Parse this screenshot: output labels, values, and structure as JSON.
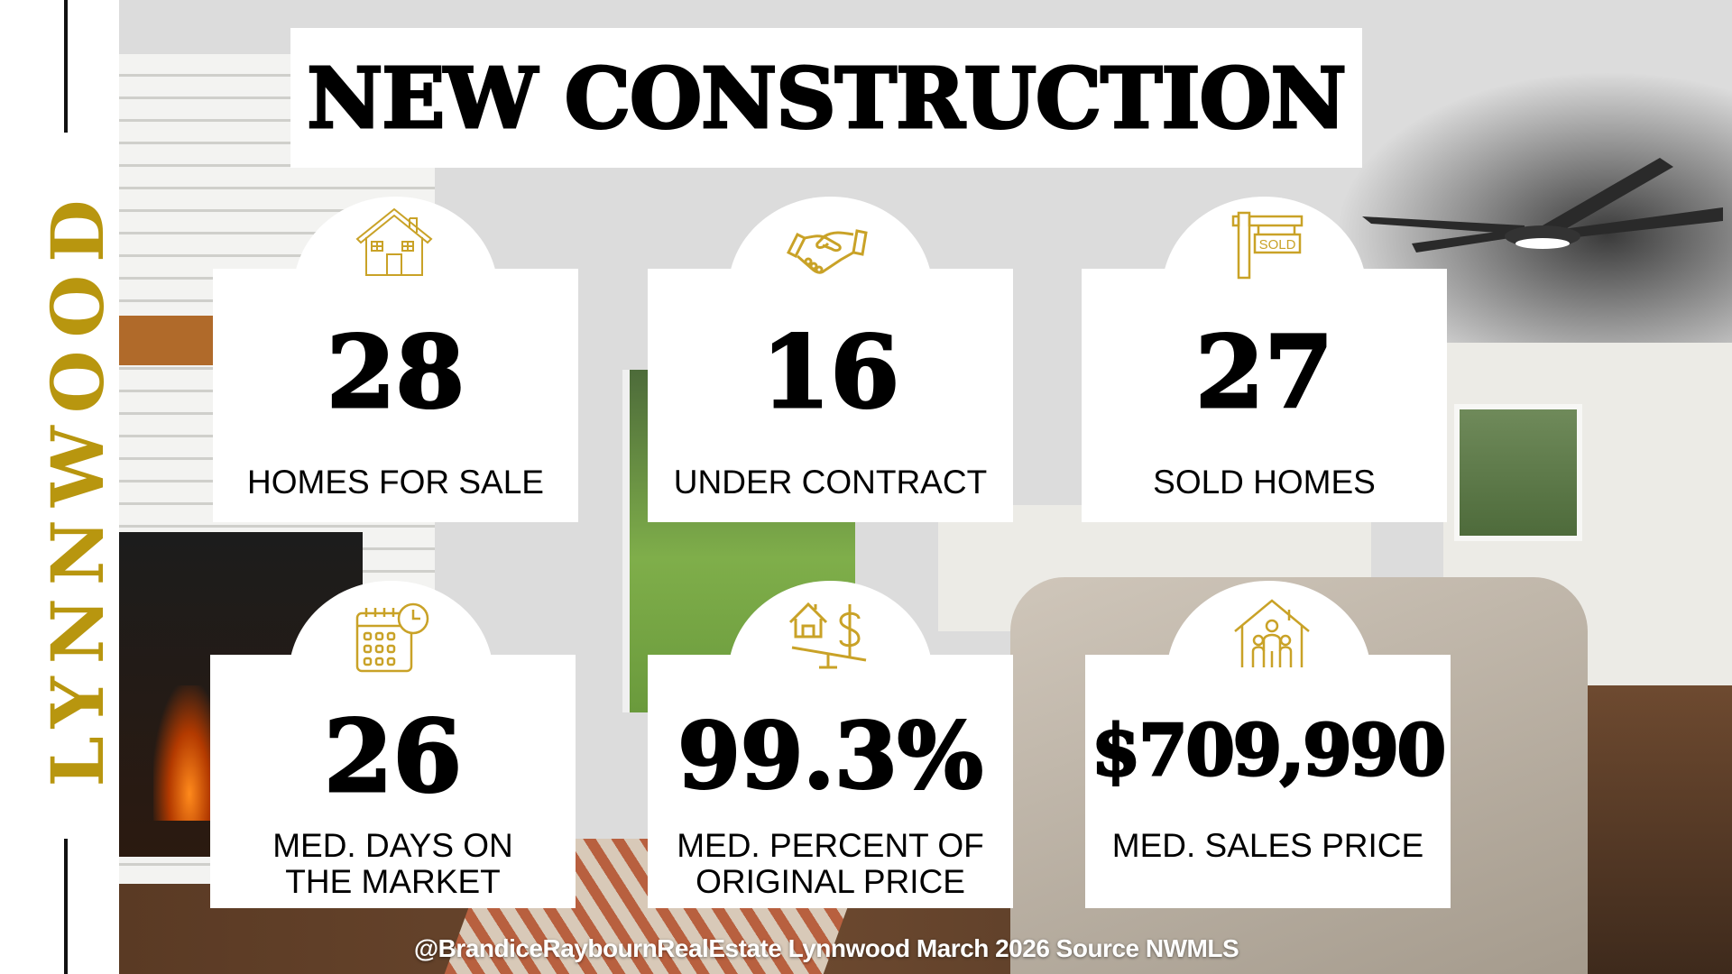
{
  "sidebar": {
    "city": "LYNNWOOD"
  },
  "header": {
    "title": "NEW CONSTRUCTION"
  },
  "colors": {
    "accent": "#b8960f",
    "icon": "#c9a227",
    "text": "#000000"
  },
  "stats": [
    {
      "icon": "house-icon",
      "value": "28",
      "label": "HOMES FOR SALE"
    },
    {
      "icon": "handshake-icon",
      "value": "16",
      "label": "UNDER CONTRACT"
    },
    {
      "icon": "sold-sign-icon",
      "value": "27",
      "label": "SOLD HOMES",
      "sign_text": "SOLD"
    },
    {
      "icon": "calendar-clock-icon",
      "value": "26",
      "label_line1": "MED. DAYS ON",
      "label_line2": "THE MARKET"
    },
    {
      "icon": "house-dollar-scale-icon",
      "value": "99.3%",
      "label_line1": "MED. PERCENT OF",
      "label_line2": "ORIGINAL PRICE"
    },
    {
      "icon": "family-house-icon",
      "value": "$709,990",
      "label": "MED. SALES PRICE"
    }
  ],
  "footer": {
    "text": "@BrandiceRaybournRealEstate Lynnwood March 2026 Source NWMLS"
  }
}
